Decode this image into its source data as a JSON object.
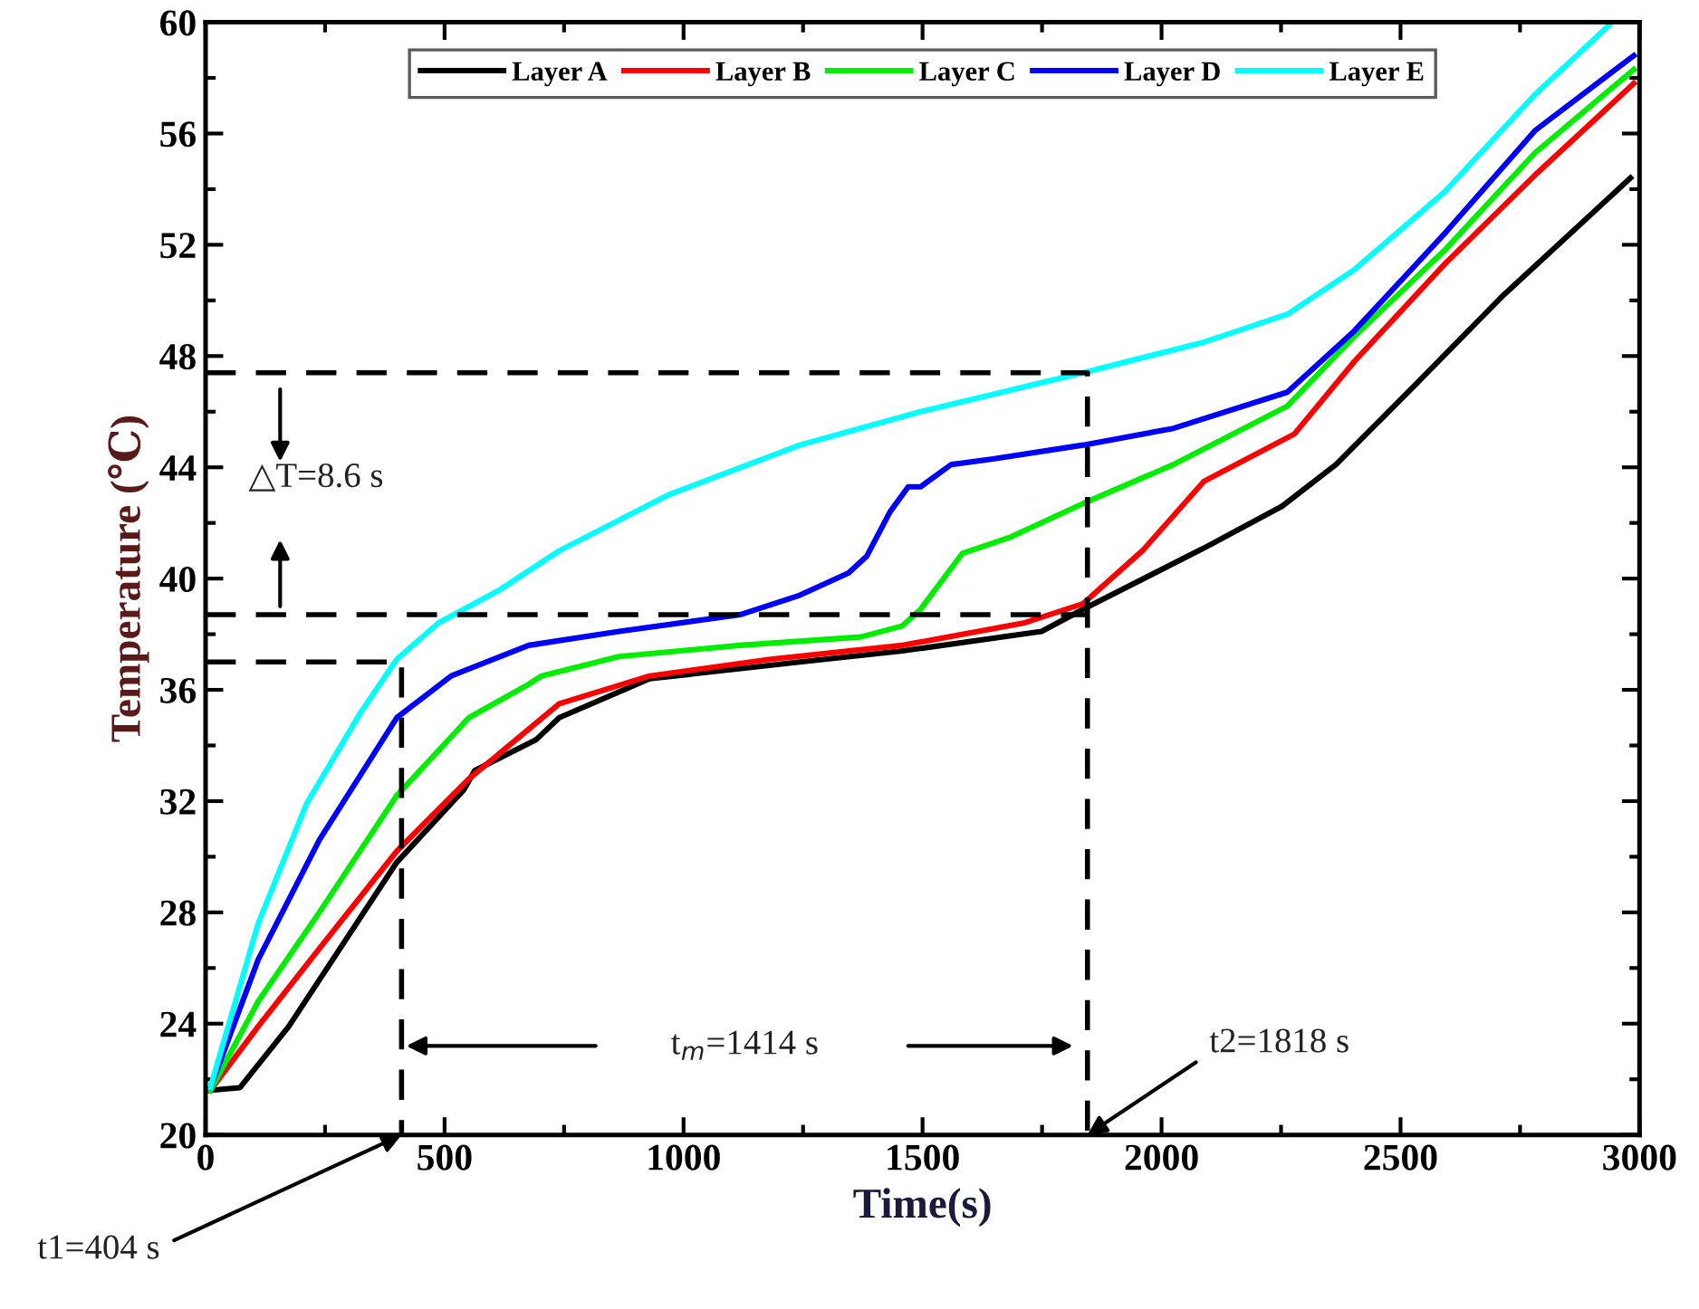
{
  "chart_data": {
    "type": "line",
    "xlabel": "Time(s)",
    "ylabel": "Temperature (℃)",
    "xlim": [
      0,
      3000
    ],
    "ylim": [
      20,
      60
    ],
    "xticks": [
      0,
      500,
      1000,
      1500,
      2000,
      2500,
      3000
    ],
    "yticks": [
      20,
      24,
      28,
      32,
      36,
      40,
      44,
      48,
      52,
      56,
      60
    ],
    "grid": false,
    "legend": "top",
    "marker": "none",
    "line_style": "solid",
    "series": [
      {
        "name": "Layer A",
        "color": "#000000",
        "x": [
          10,
          72,
          174,
          400,
          540,
          563,
          691,
          740,
          929,
          1243,
          1458,
          1749,
          1836,
          2089,
          2252,
          2365,
          2527,
          2716,
          2981
        ],
        "values": [
          21.6,
          21.7,
          23.9,
          29.8,
          32.4,
          33.1,
          34.2,
          35.0,
          36.4,
          37.0,
          37.4,
          38.1,
          38.9,
          41.1,
          42.6,
          44.1,
          46.9,
          50.2,
          54.4
        ]
      },
      {
        "name": "Layer B",
        "color": "#ff0000",
        "x": [
          10,
          110,
          238,
          400,
          551,
          740,
          929,
          1182,
          1458,
          1711,
          1836,
          1960,
          2089,
          2278,
          2403,
          2592,
          2781,
          2988
        ],
        "values": [
          21.6,
          23.9,
          26.7,
          30.2,
          32.8,
          35.5,
          36.5,
          37.1,
          37.6,
          38.4,
          39.1,
          41.0,
          43.5,
          45.2,
          47.8,
          51.3,
          54.5,
          57.8
        ]
      },
      {
        "name": "Layer C",
        "color": "#00ee00",
        "x": [
          10,
          110,
          238,
          400,
          551,
          676,
          703,
          865,
          1118,
          1371,
          1458,
          1496,
          1583,
          1685,
          1836,
          2025,
          2263,
          2403,
          2592,
          2781,
          2988
        ],
        "values": [
          21.6,
          24.8,
          28.0,
          32.2,
          35.0,
          36.2,
          36.5,
          37.2,
          37.6,
          37.9,
          38.3,
          38.9,
          40.9,
          41.5,
          42.7,
          44.1,
          46.2,
          48.7,
          51.8,
          55.3,
          58.3
        ]
      },
      {
        "name": "Layer D",
        "color": "#0000ff",
        "x": [
          10,
          110,
          238,
          400,
          514,
          676,
          865,
          1118,
          1243,
          1345,
          1383,
          1432,
          1470,
          1496,
          1560,
          1647,
          1836,
          2025,
          2263,
          2403,
          2592,
          2781,
          2988
        ],
        "values": [
          21.7,
          26.3,
          30.6,
          35.0,
          36.5,
          37.6,
          38.1,
          38.7,
          39.4,
          40.2,
          40.8,
          42.4,
          43.3,
          43.3,
          44.1,
          44.3,
          44.8,
          45.4,
          46.7,
          48.9,
          52.4,
          56.1,
          58.8
        ]
      },
      {
        "name": "Layer E",
        "color": "#00ffff",
        "x": [
          10,
          110,
          211,
          325,
          400,
          487,
          616,
          740,
          967,
          1243,
          1496,
          1836,
          2089,
          2263,
          2403,
          2592,
          2781,
          2943
        ],
        "values": [
          21.7,
          27.6,
          31.9,
          35.2,
          37.1,
          38.4,
          39.6,
          41.0,
          43.0,
          44.8,
          46.0,
          47.4,
          48.5,
          49.5,
          51.1,
          53.9,
          57.4,
          60.0
        ]
      },
      {
        "color": "#000000",
        "line_style": "dashed",
        "x": [
          0,
          410,
          410
        ],
        "values": [
          37.0,
          37.0,
          20
        ]
      },
      {
        "color": "#000000",
        "line_style": "dashed",
        "x": [
          0,
          1845
        ],
        "values": [
          38.7,
          38.7
        ]
      },
      {
        "color": "#000000",
        "line_style": "dashed",
        "x": [
          0,
          1845,
          1845
        ],
        "values": [
          47.4,
          47.4,
          20
        ]
      }
    ],
    "annotations": [
      "△T=8.6 s",
      "t$_{m}$=1414 s",
      {
        "text": "t1=404 s",
        "x": 410,
        "y": 20
      },
      {
        "text": "t2=1818 s",
        "x": 1845,
        "y": 20
      }
    ]
  }
}
